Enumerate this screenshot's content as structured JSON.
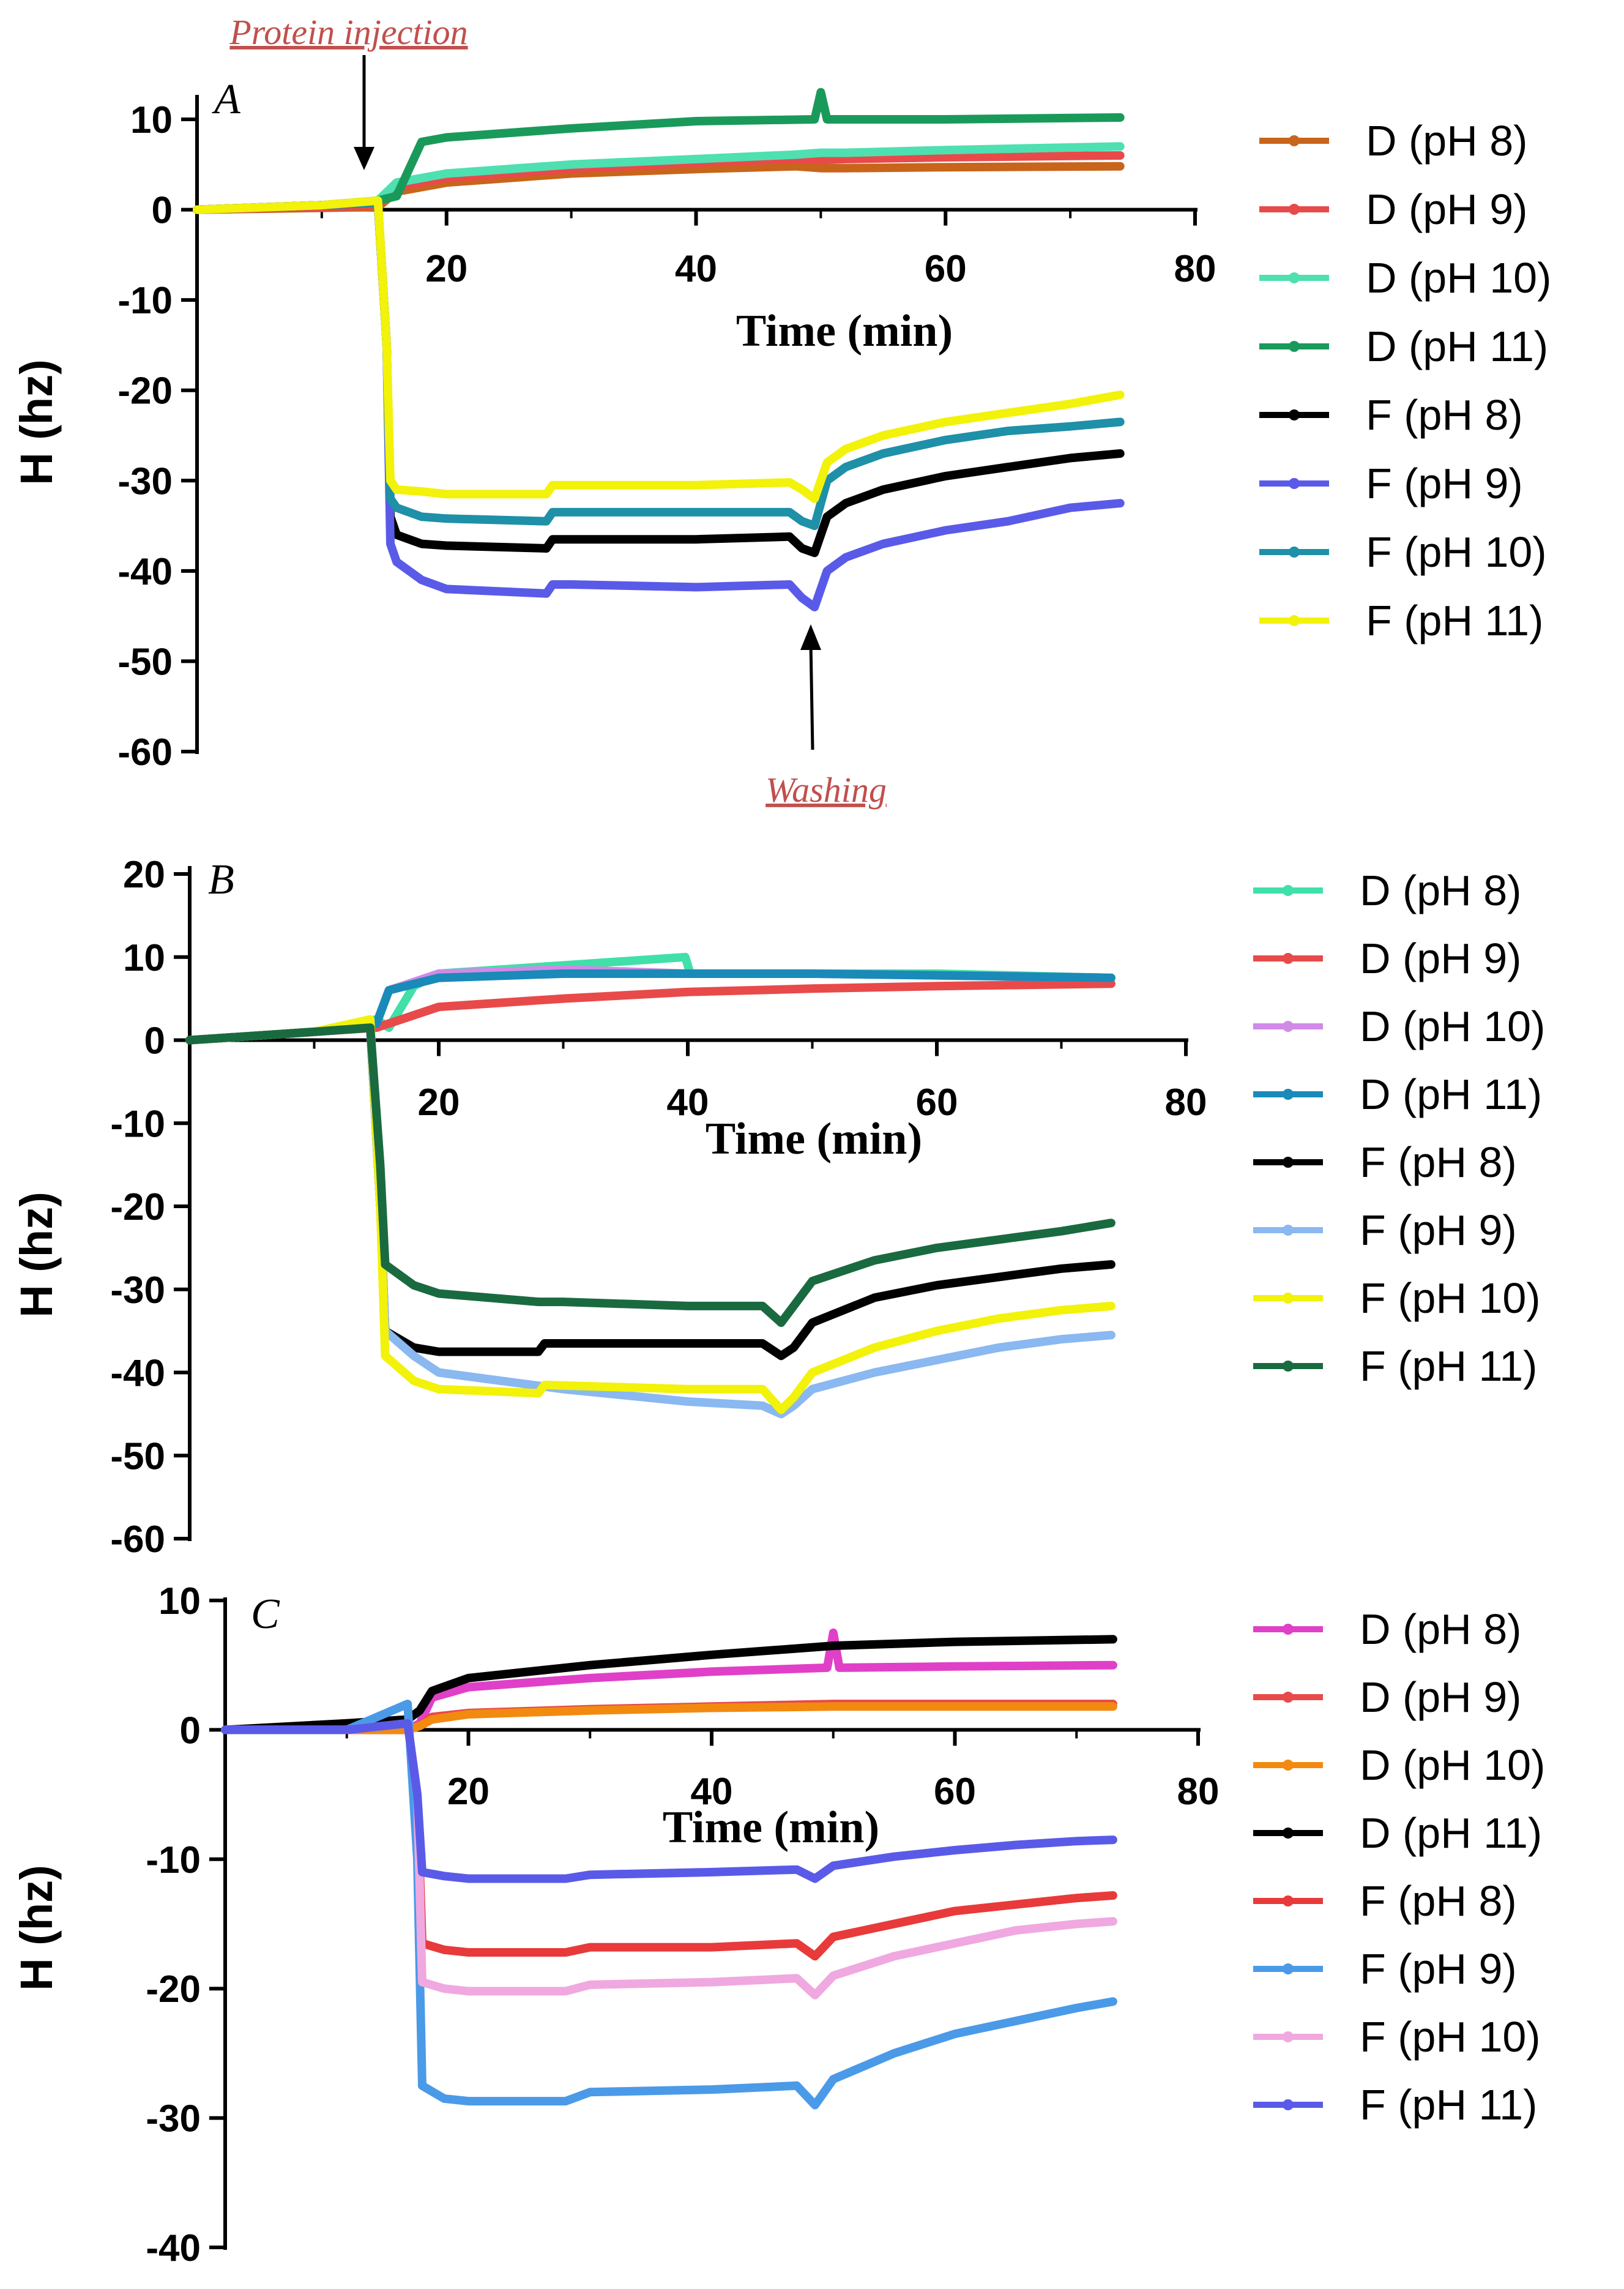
{
  "chart_data": [
    {
      "panel_label": "A",
      "type": "line",
      "xlabel": "Time (min)",
      "ylabel": "H (hz)",
      "xlim": [
        0,
        80
      ],
      "ylim": [
        -60,
        12
      ],
      "x_ticks": [
        "20",
        "40",
        "60",
        "80"
      ],
      "y_ticks": [
        "10",
        "0",
        "-10",
        "-20",
        "-30",
        "-40",
        "-50",
        "-60"
      ],
      "legend_position": "right",
      "annotations": [
        {
          "text": "Protein injection",
          "x": 14,
          "y": 1
        },
        {
          "text": "Washing",
          "x": 49.5,
          "y": -46
        }
      ],
      "series": [
        {
          "name": "D (pH 8)",
          "color": "#c8651b",
          "x": [
            0,
            10,
            14.5,
            16,
            20,
            30,
            40,
            48,
            50,
            52,
            60,
            74
          ],
          "y": [
            0,
            0.2,
            0.3,
            2.0,
            3.0,
            4.0,
            4.5,
            4.8,
            4.6,
            4.6,
            4.7,
            4.8
          ]
        },
        {
          "name": "D (pH 9)",
          "color": "#e84a4a",
          "x": [
            0,
            10,
            14.5,
            16,
            20,
            30,
            40,
            48,
            50,
            52,
            60,
            74
          ],
          "y": [
            0,
            0.3,
            0.5,
            2.5,
            3.5,
            4.5,
            5.2,
            5.6,
            5.5,
            5.6,
            5.8,
            6.0
          ]
        },
        {
          "name": "D (pH 10)",
          "color": "#4ee0b0",
          "x": [
            0,
            10,
            14.5,
            16,
            20,
            30,
            40,
            48,
            50,
            52,
            60,
            74
          ],
          "y": [
            0,
            0.5,
            1.0,
            3.0,
            4.0,
            5.0,
            5.6,
            6.1,
            6.3,
            6.3,
            6.6,
            7.0
          ]
        },
        {
          "name": "D (pH 11)",
          "color": "#1a9a5a",
          "x": [
            0,
            10,
            14.5,
            16,
            18,
            20,
            30,
            40,
            49.5,
            50,
            50.5,
            52,
            60,
            74
          ],
          "y": [
            0,
            0.5,
            1.0,
            1.5,
            7.5,
            8.0,
            9.0,
            9.8,
            10.0,
            13.0,
            10.0,
            10.0,
            10.0,
            10.2
          ]
        },
        {
          "name": "F (pH 8)",
          "color": "#000000",
          "x": [
            0,
            10,
            14.5,
            15.2,
            15.5,
            16,
            18,
            20,
            28,
            28.5,
            30,
            40,
            47.5,
            48.5,
            49.5,
            50.5,
            52,
            55,
            60,
            65,
            70,
            74
          ],
          "y": [
            0,
            0.5,
            0.8,
            -15,
            -34,
            -36,
            -37,
            -37.2,
            -37.5,
            -36.5,
            -36.5,
            -36.5,
            -36.2,
            -37.5,
            -38,
            -34,
            -32.5,
            -31,
            -29.5,
            -28.5,
            -27.5,
            -27
          ]
        },
        {
          "name": "F (pH 9)",
          "color": "#5a5ae8",
          "x": [
            0,
            10,
            14.5,
            15.2,
            15.5,
            16,
            18,
            20,
            28,
            28.5,
            30,
            40,
            47.5,
            48.5,
            49.5,
            50.5,
            52,
            55,
            60,
            65,
            70,
            74
          ],
          "y": [
            0,
            0.5,
            0.8,
            -15,
            -37,
            -39,
            -41,
            -42,
            -42.5,
            -41.5,
            -41.5,
            -41.8,
            -41.5,
            -43,
            -44,
            -40,
            -38.5,
            -37,
            -35.5,
            -34.5,
            -33,
            -32.5
          ]
        },
        {
          "name": "F (pH 10)",
          "color": "#1e90a8",
          "x": [
            0,
            10,
            14.5,
            15.2,
            15.5,
            16,
            18,
            20,
            28,
            28.5,
            30,
            40,
            47.5,
            48.5,
            49.5,
            50.5,
            52,
            55,
            60,
            65,
            70,
            74
          ],
          "y": [
            0,
            0.5,
            0.8,
            -15,
            -32,
            -33,
            -34,
            -34.2,
            -34.5,
            -33.5,
            -33.5,
            -33.5,
            -33.5,
            -34.5,
            -35,
            -30,
            -28.5,
            -27,
            -25.5,
            -24.5,
            -24,
            -23.5
          ]
        },
        {
          "name": "F (pH 11)",
          "color": "#f2f20a",
          "x": [
            0,
            10,
            14.5,
            15.2,
            15.5,
            16,
            18,
            20,
            28,
            28.5,
            30,
            40,
            47.5,
            48.5,
            49.5,
            50.5,
            52,
            55,
            60,
            65,
            70,
            74
          ],
          "y": [
            0,
            0.5,
            1.0,
            -15,
            -30,
            -31,
            -31.2,
            -31.5,
            -31.5,
            -30.5,
            -30.5,
            -30.5,
            -30.2,
            -31,
            -32,
            -28,
            -26.5,
            -25,
            -23.5,
            -22.5,
            -21.5,
            -20.5
          ]
        }
      ]
    },
    {
      "panel_label": "B",
      "type": "line",
      "xlabel": "Time (min)",
      "ylabel": "H (hz)",
      "xlim": [
        0,
        80
      ],
      "ylim": [
        -60,
        20
      ],
      "x_ticks": [
        "20",
        "40",
        "60",
        "80"
      ],
      "y_ticks": [
        "20",
        "10",
        "0",
        "-10",
        "-20",
        "-30",
        "-40",
        "-50",
        "-60"
      ],
      "legend_position": "right",
      "series": [
        {
          "name": "D (pH 8)",
          "color": "#40e0a8",
          "x": [
            0,
            10,
            15,
            16,
            18,
            20,
            30,
            39.8,
            40.2,
            50,
            60,
            74
          ],
          "y": [
            0,
            1,
            2.5,
            1.5,
            6.5,
            8,
            9,
            10,
            8,
            8,
            8,
            7.5
          ]
        },
        {
          "name": "D (pH 9)",
          "color": "#e84a4a",
          "x": [
            0,
            10,
            15,
            16,
            20,
            30,
            40,
            50,
            60,
            74
          ],
          "y": [
            0,
            1,
            1.5,
            2,
            4,
            5,
            5.8,
            6.2,
            6.5,
            6.8
          ]
        },
        {
          "name": "D (pH 10)",
          "color": "#d08ae8",
          "x": [
            0,
            10,
            15,
            16,
            20,
            30,
            40,
            50,
            60,
            74
          ],
          "y": [
            0,
            1,
            2,
            6,
            8,
            8.5,
            8,
            8,
            7.8,
            7.5
          ]
        },
        {
          "name": "D (pH 11)",
          "color": "#1a8ab8",
          "x": [
            0,
            10,
            15,
            16,
            20,
            30,
            40,
            50,
            60,
            74
          ],
          "y": [
            0,
            1,
            2,
            6,
            7.5,
            8,
            8,
            8,
            7.8,
            7.5
          ]
        },
        {
          "name": "F (pH 8)",
          "color": "#000000",
          "x": [
            0,
            10,
            14.5,
            15.3,
            15.7,
            18,
            20,
            28,
            28.5,
            40,
            46,
            47.5,
            48.5,
            50,
            55,
            60,
            65,
            70,
            74
          ],
          "y": [
            0,
            1,
            1.5,
            -20,
            -35,
            -37,
            -37.5,
            -37.5,
            -36.5,
            -36.5,
            -36.5,
            -38,
            -37,
            -34,
            -31,
            -29.5,
            -28.5,
            -27.5,
            -27
          ]
        },
        {
          "name": "F (pH 9)",
          "color": "#8ab8f0",
          "x": [
            0,
            10,
            14.5,
            15.3,
            15.7,
            18,
            20,
            30,
            40,
            46,
            47.5,
            48.5,
            50,
            55,
            60,
            65,
            70,
            74
          ],
          "y": [
            0,
            1,
            1.5,
            -20,
            -35,
            -38,
            -40,
            -42,
            -43.5,
            -44,
            -45,
            -44,
            -42,
            -40,
            -38.5,
            -37,
            -36,
            -35.5
          ]
        },
        {
          "name": "F (pH 10)",
          "color": "#f2f20a",
          "x": [
            0,
            10,
            14.5,
            15.3,
            15.7,
            18,
            20,
            28,
            28.5,
            40,
            46,
            47.5,
            48.5,
            50,
            55,
            60,
            65,
            70,
            74
          ],
          "y": [
            0,
            1,
            2.5,
            -20,
            -38,
            -41,
            -42,
            -42.5,
            -41.5,
            -42,
            -42,
            -44.5,
            -43,
            -40,
            -37,
            -35,
            -33.5,
            -32.5,
            -32
          ]
        },
        {
          "name": "F (pH 11)",
          "color": "#1a6a40",
          "x": [
            0,
            10,
            14.5,
            15.3,
            15.7,
            18,
            20,
            28,
            30,
            40,
            46,
            47.5,
            48.5,
            50,
            55,
            60,
            65,
            70,
            74
          ],
          "y": [
            0,
            1,
            1.5,
            -15,
            -27,
            -29.5,
            -30.5,
            -31.5,
            -31.5,
            -32,
            -32,
            -34,
            -32,
            -29,
            -26.5,
            -25,
            -24,
            -23,
            -22
          ]
        }
      ]
    },
    {
      "panel_label": "C",
      "type": "line",
      "xlabel": "Time (min)",
      "ylabel": "H (hz)",
      "xlim": [
        0,
        80
      ],
      "ylim": [
        -40,
        10
      ],
      "x_ticks": [
        "20",
        "40",
        "60",
        "80"
      ],
      "y_ticks": [
        "10",
        "0",
        "-10",
        "-20",
        "-30",
        "-40"
      ],
      "legend_position": "right",
      "series": [
        {
          "name": "D (pH 8)",
          "color": "#e040c8",
          "x": [
            0,
            10,
            15,
            16,
            17,
            20,
            30,
            40,
            49.5,
            50,
            50.5,
            60,
            73
          ],
          "y": [
            0,
            0,
            0,
            0.5,
            2.5,
            3.3,
            4.0,
            4.5,
            4.8,
            7.5,
            4.8,
            4.9,
            5.0
          ]
        },
        {
          "name": "D (pH 9)",
          "color": "#e84a4a",
          "x": [
            0,
            10,
            15,
            16,
            17,
            20,
            30,
            40,
            50,
            60,
            73
          ],
          "y": [
            0,
            0,
            0,
            0.3,
            1.0,
            1.3,
            1.6,
            1.8,
            2.0,
            2.0,
            2.0
          ]
        },
        {
          "name": "D (pH 10)",
          "color": "#f28a10",
          "x": [
            0,
            10,
            15,
            16,
            17,
            20,
            30,
            40,
            50,
            60,
            73
          ],
          "y": [
            0,
            0,
            0,
            0.3,
            0.8,
            1.2,
            1.5,
            1.7,
            1.8,
            1.8,
            1.8
          ]
        },
        {
          "name": "D (pH 11)",
          "color": "#000000",
          "x": [
            0,
            10,
            15,
            16,
            17,
            20,
            30,
            40,
            50,
            60,
            73
          ],
          "y": [
            0,
            0.5,
            0.8,
            1.5,
            3.0,
            4.0,
            5.0,
            5.8,
            6.5,
            6.8,
            7.0
          ]
        },
        {
          "name": "F (pH 8)",
          "color": "#e83a3a",
          "x": [
            0,
            10,
            15,
            15.8,
            16.2,
            18,
            20,
            28,
            30,
            40,
            47,
            48.5,
            50,
            55,
            60,
            65,
            70,
            73
          ],
          "y": [
            0,
            0,
            0.5,
            -5,
            -16.5,
            -17,
            -17.2,
            -17.2,
            -16.8,
            -16.8,
            -16.5,
            -17.5,
            -16,
            -15,
            -14,
            -13.5,
            -13,
            -12.8
          ]
        },
        {
          "name": "F (pH 9)",
          "color": "#4a9ae8",
          "x": [
            0,
            10,
            15,
            15.8,
            16.2,
            18,
            20,
            28,
            30,
            40,
            47,
            48.5,
            50,
            55,
            60,
            65,
            70,
            73
          ],
          "y": [
            0,
            0,
            2,
            -10,
            -27.5,
            -28.5,
            -28.7,
            -28.7,
            -28,
            -27.8,
            -27.5,
            -29,
            -27,
            -25,
            -23.5,
            -22.5,
            -21.5,
            -21
          ]
        },
        {
          "name": "F (pH 10)",
          "color": "#f0a8e0",
          "x": [
            0,
            10,
            15,
            15.8,
            16.2,
            18,
            20,
            28,
            30,
            40,
            47,
            48.5,
            50,
            55,
            60,
            65,
            70,
            73
          ],
          "y": [
            0,
            0,
            0.5,
            -5,
            -19.5,
            -20,
            -20.2,
            -20.2,
            -19.7,
            -19.5,
            -19.2,
            -20.5,
            -19,
            -17.5,
            -16.5,
            -15.5,
            -15,
            -14.8
          ]
        },
        {
          "name": "F (pH 11)",
          "color": "#5a5ae8",
          "x": [
            0,
            10,
            15,
            15.8,
            16.2,
            18,
            20,
            28,
            30,
            40,
            47,
            48.5,
            50,
            55,
            60,
            65,
            70,
            73
          ],
          "y": [
            0,
            0,
            0.5,
            -5,
            -11,
            -11.3,
            -11.5,
            -11.5,
            -11.2,
            -11.0,
            -10.8,
            -11.5,
            -10.5,
            -9.8,
            -9.3,
            -8.9,
            -8.6,
            -8.5
          ]
        }
      ]
    }
  ]
}
